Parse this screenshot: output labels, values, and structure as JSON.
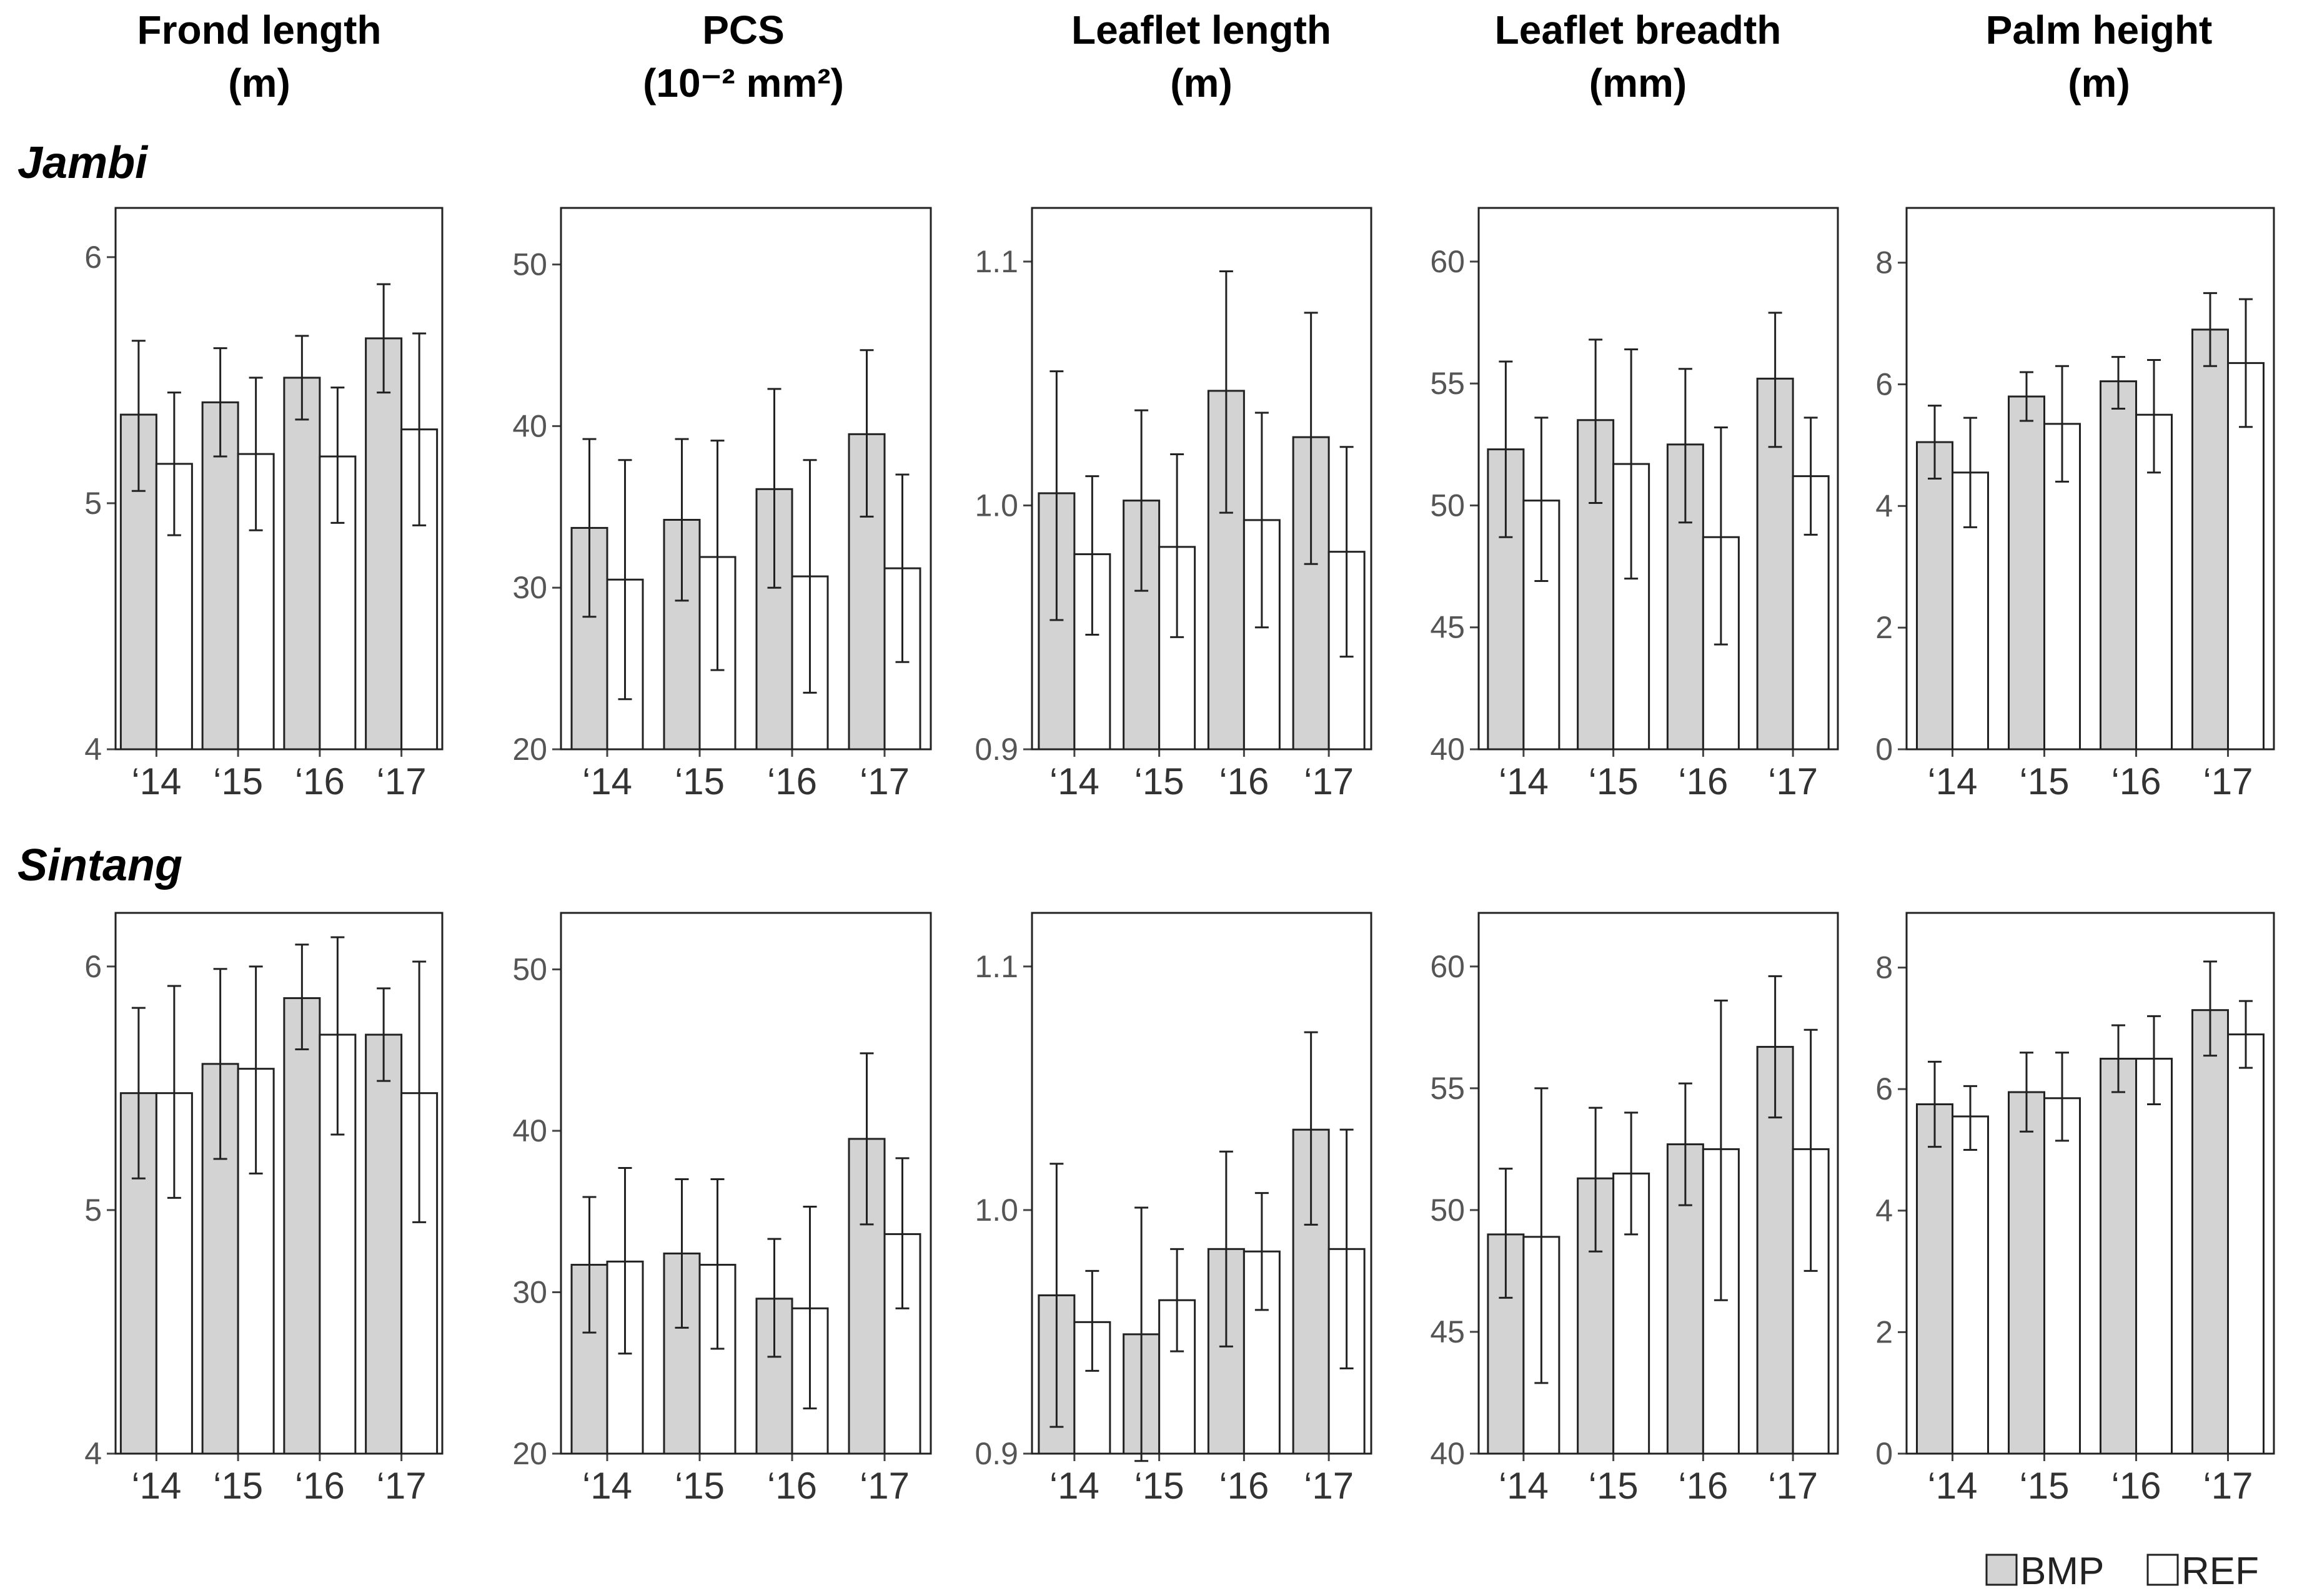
{
  "figure": {
    "columns": [
      {
        "title": "Frond length",
        "unit": "(m)"
      },
      {
        "title": "PCS",
        "unit": "(10⁻² mm²)"
      },
      {
        "title": "Leaflet length",
        "unit": "(m)"
      },
      {
        "title": "Leaflet breadth",
        "unit": "(mm)"
      },
      {
        "title": "Palm height",
        "unit": "(m)"
      }
    ],
    "rows": [
      "Jambi",
      "Sintang"
    ],
    "legend": [
      {
        "name": "BMP",
        "color": "#d3d3d3"
      },
      {
        "name": "REF",
        "color": "#ffffff"
      }
    ]
  },
  "chart_data": [
    {
      "type": "bar",
      "region": "Jambi",
      "title": "Frond length",
      "ylabel": "(m)",
      "categories": [
        "‘14",
        "‘15",
        "‘16",
        "‘17"
      ],
      "ylim": [
        4,
        6.2
      ],
      "yticks": [
        4,
        5,
        6
      ],
      "ytick_labels": [
        "4",
        "5",
        "6"
      ],
      "series": [
        {
          "name": "BMP",
          "values": [
            5.36,
            5.41,
            5.51,
            5.67
          ],
          "err_low": [
            5.05,
            5.19,
            5.34,
            5.45
          ],
          "err_high": [
            5.66,
            5.63,
            5.68,
            5.89
          ]
        },
        {
          "name": "REF",
          "values": [
            5.16,
            5.2,
            5.19,
            5.3
          ],
          "err_low": [
            4.87,
            4.89,
            4.92,
            4.91
          ],
          "err_high": [
            5.45,
            5.51,
            5.47,
            5.69
          ]
        }
      ]
    },
    {
      "type": "bar",
      "region": "Jambi",
      "title": "PCS",
      "ylabel": "(10⁻² mm²)",
      "categories": [
        "‘14",
        "‘15",
        "‘16",
        "‘17"
      ],
      "ylim": [
        20,
        53.5
      ],
      "yticks": [
        20,
        30,
        40,
        50
      ],
      "ytick_labels": [
        "20",
        "30",
        "40",
        "50"
      ],
      "series": [
        {
          "name": "BMP",
          "values": [
            33.7,
            34.2,
            36.1,
            39.5
          ],
          "err_low": [
            28.2,
            29.2,
            30.0,
            34.4
          ],
          "err_high": [
            39.2,
            39.2,
            42.3,
            44.7
          ]
        },
        {
          "name": "REF",
          "values": [
            30.5,
            31.9,
            30.7,
            31.2
          ],
          "err_low": [
            23.1,
            24.9,
            23.5,
            25.4
          ],
          "err_high": [
            37.9,
            39.1,
            37.9,
            37.0
          ]
        }
      ]
    },
    {
      "type": "bar",
      "region": "Jambi",
      "title": "Leaflet length",
      "ylabel": "(m)",
      "categories": [
        "‘14",
        "‘15",
        "‘16",
        "‘17"
      ],
      "ylim": [
        0.9,
        1.122
      ],
      "yticks": [
        0.9,
        1.0,
        1.1
      ],
      "ytick_labels": [
        "0.9",
        "1.0",
        "1.1"
      ],
      "series": [
        {
          "name": "BMP",
          "values": [
            1.005,
            1.002,
            1.047,
            1.028
          ],
          "err_low": [
            0.953,
            0.965,
            0.997,
            0.976
          ],
          "err_high": [
            1.055,
            1.039,
            1.096,
            1.079
          ]
        },
        {
          "name": "REF",
          "values": [
            0.98,
            0.983,
            0.994,
            0.981
          ],
          "err_low": [
            0.947,
            0.946,
            0.95,
            0.938
          ],
          "err_high": [
            1.012,
            1.021,
            1.038,
            1.024
          ]
        }
      ]
    },
    {
      "type": "bar",
      "region": "Jambi",
      "title": "Leaflet breadth",
      "ylabel": "(mm)",
      "categories": [
        "‘14",
        "‘15",
        "‘16",
        "‘17"
      ],
      "ylim": [
        40,
        62.2
      ],
      "yticks": [
        40,
        45,
        50,
        55,
        60
      ],
      "ytick_labels": [
        "40",
        "45",
        "50",
        "55",
        "60"
      ],
      "series": [
        {
          "name": "BMP",
          "values": [
            52.3,
            53.5,
            52.5,
            55.2
          ],
          "err_low": [
            48.7,
            50.1,
            49.3,
            52.4
          ],
          "err_high": [
            55.9,
            56.8,
            55.6,
            57.9
          ]
        },
        {
          "name": "REF",
          "values": [
            50.2,
            51.7,
            48.7,
            51.2
          ],
          "err_low": [
            46.9,
            47.0,
            44.3,
            48.8
          ],
          "err_high": [
            53.6,
            56.4,
            53.2,
            53.6
          ]
        }
      ]
    },
    {
      "type": "bar",
      "region": "Jambi",
      "title": "Palm height",
      "ylabel": "(m)",
      "categories": [
        "‘14",
        "‘15",
        "‘16",
        "‘17"
      ],
      "ylim": [
        0,
        8.9
      ],
      "yticks": [
        0,
        2,
        4,
        6,
        8
      ],
      "ytick_labels": [
        "0",
        "2",
        "4",
        "6",
        "8"
      ],
      "series": [
        {
          "name": "BMP",
          "values": [
            5.05,
            5.8,
            6.05,
            6.9
          ],
          "err_low": [
            4.45,
            5.4,
            5.6,
            6.3
          ],
          "err_high": [
            5.65,
            6.2,
            6.45,
            7.5
          ]
        },
        {
          "name": "REF",
          "values": [
            4.55,
            5.35,
            5.5,
            6.35
          ],
          "err_low": [
            3.65,
            4.4,
            4.55,
            5.3
          ],
          "err_high": [
            5.45,
            6.3,
            6.4,
            7.4
          ]
        }
      ]
    },
    {
      "type": "bar",
      "region": "Sintang",
      "title": "Frond length",
      "ylabel": "(m)",
      "categories": [
        "‘14",
        "‘15",
        "‘16",
        "‘17"
      ],
      "ylim": [
        4,
        6.22
      ],
      "yticks": [
        4,
        5,
        6
      ],
      "ytick_labels": [
        "4",
        "5",
        "6"
      ],
      "series": [
        {
          "name": "BMP",
          "values": [
            5.48,
            5.6,
            5.87,
            5.72
          ],
          "err_low": [
            5.13,
            5.21,
            5.66,
            5.53
          ],
          "err_high": [
            5.83,
            5.99,
            6.09,
            5.91
          ]
        },
        {
          "name": "REF",
          "values": [
            5.48,
            5.58,
            5.72,
            5.48
          ],
          "err_low": [
            5.05,
            5.15,
            5.31,
            4.95
          ],
          "err_high": [
            5.92,
            6.0,
            6.12,
            6.02
          ]
        }
      ]
    },
    {
      "type": "bar",
      "region": "Sintang",
      "title": "PCS",
      "ylabel": "(10⁻² mm²)",
      "categories": [
        "‘14",
        "‘15",
        "‘16",
        "‘17"
      ],
      "ylim": [
        20,
        53.5
      ],
      "yticks": [
        20,
        30,
        40,
        50
      ],
      "ytick_labels": [
        "20",
        "30",
        "40",
        "50"
      ],
      "series": [
        {
          "name": "BMP",
          "values": [
            31.7,
            32.4,
            29.6,
            39.5
          ],
          "err_low": [
            27.5,
            27.8,
            26.0,
            34.2
          ],
          "err_high": [
            35.9,
            37.0,
            33.3,
            44.8
          ]
        },
        {
          "name": "REF",
          "values": [
            31.9,
            31.7,
            29.0,
            33.6
          ],
          "err_low": [
            26.2,
            26.5,
            22.8,
            29.0
          ],
          "err_high": [
            37.7,
            37.0,
            35.3,
            38.3
          ]
        }
      ]
    },
    {
      "type": "bar",
      "region": "Sintang",
      "title": "Leaflet length",
      "ylabel": "(m)",
      "categories": [
        "‘14",
        "‘15",
        "‘16",
        "‘17"
      ],
      "ylim": [
        0.9,
        1.122
      ],
      "yticks": [
        0.9,
        1.0,
        1.1
      ],
      "ytick_labels": [
        "0.9",
        "1.0",
        "1.1"
      ],
      "series": [
        {
          "name": "BMP",
          "values": [
            0.965,
            0.949,
            0.984,
            1.033
          ],
          "err_low": [
            0.911,
            0.897,
            0.944,
            0.994
          ],
          "err_high": [
            1.019,
            1.001,
            1.024,
            1.073
          ]
        },
        {
          "name": "REF",
          "values": [
            0.954,
            0.963,
            0.983,
            0.984
          ],
          "err_low": [
            0.934,
            0.942,
            0.959,
            0.935
          ],
          "err_high": [
            0.975,
            0.984,
            1.007,
            1.033
          ]
        }
      ]
    },
    {
      "type": "bar",
      "region": "Sintang",
      "title": "Leaflet breadth",
      "ylabel": "(mm)",
      "categories": [
        "‘14",
        "‘15",
        "‘16",
        "‘17"
      ],
      "ylim": [
        40,
        62.2
      ],
      "yticks": [
        40,
        45,
        50,
        55,
        60
      ],
      "ytick_labels": [
        "40",
        "45",
        "50",
        "55",
        "60"
      ],
      "series": [
        {
          "name": "BMP",
          "values": [
            49.0,
            51.3,
            52.7,
            56.7
          ],
          "err_low": [
            46.4,
            48.3,
            50.2,
            53.8
          ],
          "err_high": [
            51.7,
            54.2,
            55.2,
            59.6
          ]
        },
        {
          "name": "REF",
          "values": [
            48.9,
            51.5,
            52.5,
            52.5
          ],
          "err_low": [
            42.9,
            49.0,
            46.3,
            47.5
          ],
          "err_high": [
            55.0,
            54.0,
            58.6,
            57.4
          ]
        }
      ]
    },
    {
      "type": "bar",
      "region": "Sintang",
      "title": "Palm height",
      "ylabel": "(m)",
      "categories": [
        "‘14",
        "‘15",
        "‘16",
        "‘17"
      ],
      "ylim": [
        0,
        8.9
      ],
      "yticks": [
        0,
        2,
        4,
        6,
        8
      ],
      "ytick_labels": [
        "0",
        "2",
        "4",
        "6",
        "8"
      ],
      "series": [
        {
          "name": "BMP",
          "values": [
            5.75,
            5.95,
            6.5,
            7.3
          ],
          "err_low": [
            5.05,
            5.3,
            5.95,
            6.55
          ],
          "err_high": [
            6.45,
            6.6,
            7.05,
            8.1
          ]
        },
        {
          "name": "REF",
          "values": [
            5.55,
            5.85,
            6.5,
            6.9
          ],
          "err_low": [
            5.0,
            5.15,
            5.75,
            6.35
          ],
          "err_high": [
            6.05,
            6.6,
            7.2,
            7.45
          ]
        }
      ]
    }
  ]
}
